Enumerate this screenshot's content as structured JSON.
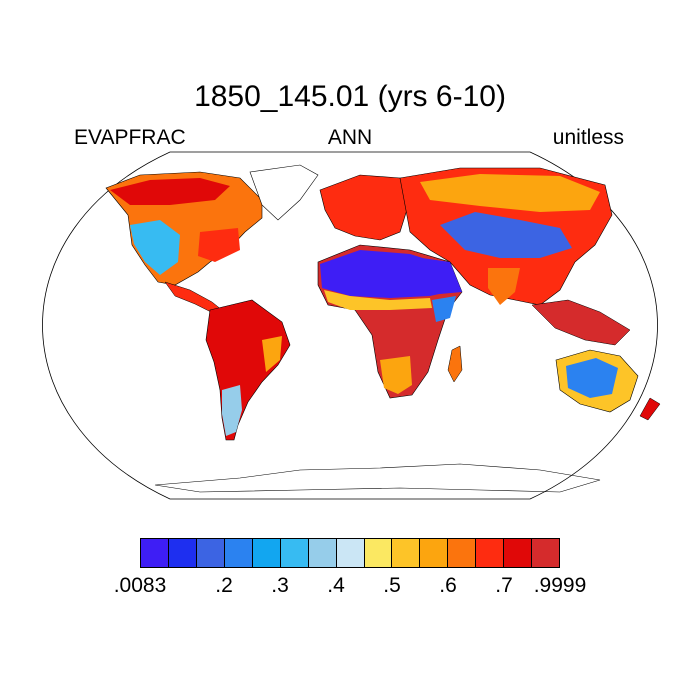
{
  "header": {
    "title": "1850_145.01 (yrs 6-10)",
    "left_label": "EVAPFRAC",
    "center_label": "ANN",
    "right_label": "unitless"
  },
  "map": {
    "projection": "Robinson",
    "variable": "evaporative fraction",
    "regions": [
      {
        "name": "North Africa / Arabia (Sahara)",
        "level": "low"
      },
      {
        "name": "Central Asia",
        "level": "low"
      },
      {
        "name": "Western North America",
        "level": "mid-low"
      },
      {
        "name": "Interior Australia",
        "level": "low"
      },
      {
        "name": "Amazon",
        "level": "high"
      },
      {
        "name": "Congo basin",
        "level": "high"
      },
      {
        "name": "Siberia / Northern Eurasia",
        "level": "high"
      },
      {
        "name": "Southeast Asia / Indonesia",
        "level": "high"
      },
      {
        "name": "Eastern North America",
        "level": "high"
      },
      {
        "name": "Patagonia",
        "level": "low"
      }
    ]
  },
  "colorbar": {
    "colors": [
      "#3e1ef5",
      "#1e2ff0",
      "#3c64e3",
      "#2b82f0",
      "#12a6f0",
      "#37bbf2",
      "#96cdea",
      "#cbe6f5",
      "#fbe862",
      "#fdc428",
      "#fca50f",
      "#fb740d",
      "#fe2c10",
      "#e00808",
      "#d52b2c"
    ],
    "tick_labels": [
      ".0083",
      ".2",
      ".3",
      ".4",
      ".5",
      ".6",
      ".7",
      ".9999"
    ]
  }
}
